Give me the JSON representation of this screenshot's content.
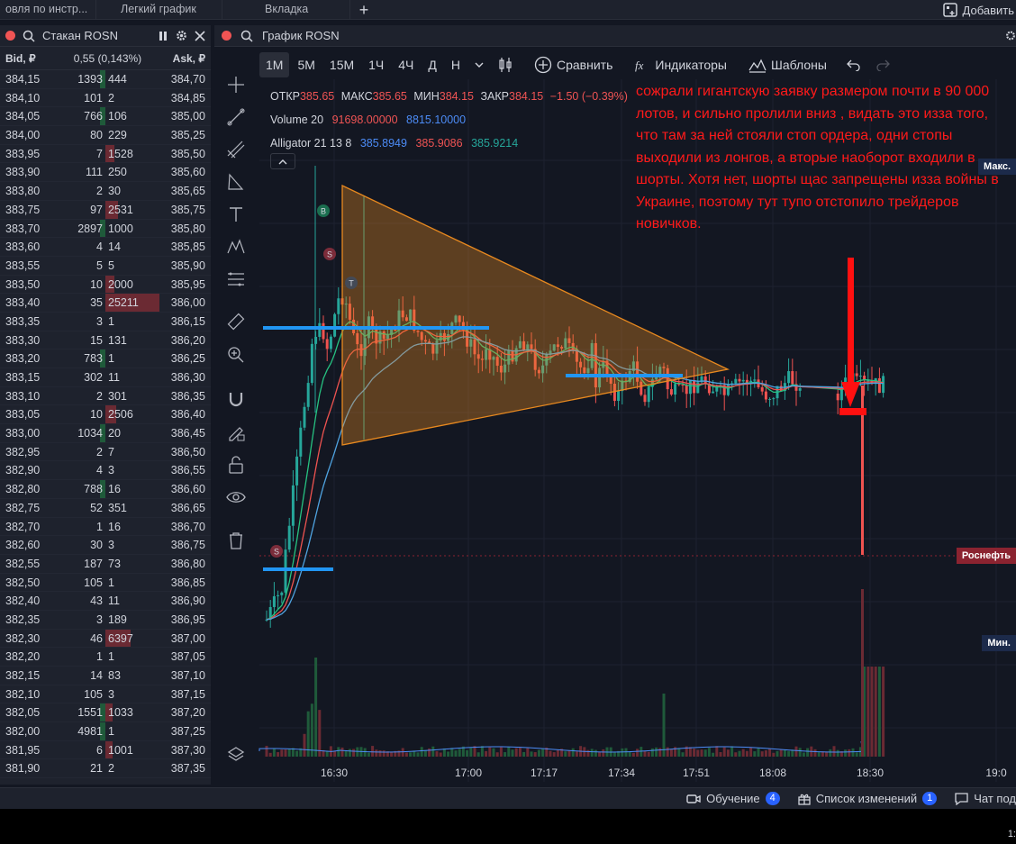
{
  "tabs": [
    "овля по инстр...",
    "Легкий график",
    "Вкладка"
  ],
  "add_widget_label": "Добавить",
  "orderbook": {
    "title": "Стакан ROSN",
    "col_bid": "Bid, ₽",
    "col_spread": "0,55 (0,143%)",
    "col_ask": "Ask, ₽",
    "rows": [
      [
        "384,15",
        "1393",
        "444",
        "384,70"
      ],
      [
        "384,10",
        "101",
        "2",
        "384,85"
      ],
      [
        "384,05",
        "766",
        "106",
        "385,00"
      ],
      [
        "384,00",
        "80",
        "229",
        "385,25"
      ],
      [
        "383,95",
        "7",
        "1528",
        "385,50"
      ],
      [
        "383,90",
        "111",
        "250",
        "385,60"
      ],
      [
        "383,80",
        "2",
        "30",
        "385,65"
      ],
      [
        "383,75",
        "97",
        "2531",
        "385,75"
      ],
      [
        "383,70",
        "2897",
        "1000",
        "385,80"
      ],
      [
        "383,60",
        "4",
        "14",
        "385,85"
      ],
      [
        "383,55",
        "5",
        "5",
        "385,90"
      ],
      [
        "383,50",
        "10",
        "2000",
        "385,95"
      ],
      [
        "383,40",
        "35",
        "25211",
        "386,00"
      ],
      [
        "383,35",
        "3",
        "1",
        "386,15"
      ],
      [
        "383,30",
        "15",
        "131",
        "386,20"
      ],
      [
        "383,20",
        "783",
        "1",
        "386,25"
      ],
      [
        "383,15",
        "302",
        "11",
        "386,30"
      ],
      [
        "383,10",
        "2",
        "301",
        "386,35"
      ],
      [
        "383,05",
        "10",
        "2506",
        "386,40"
      ],
      [
        "383,00",
        "1034",
        "20",
        "386,45"
      ],
      [
        "382,95",
        "2",
        "7",
        "386,50"
      ],
      [
        "382,90",
        "4",
        "3",
        "386,55"
      ],
      [
        "382,80",
        "788",
        "16",
        "386,60"
      ],
      [
        "382,75",
        "52",
        "351",
        "386,65"
      ],
      [
        "382,70",
        "1",
        "16",
        "386,70"
      ],
      [
        "382,60",
        "30",
        "3",
        "386,75"
      ],
      [
        "382,55",
        "187",
        "73",
        "386,80"
      ],
      [
        "382,50",
        "105",
        "1",
        "386,85"
      ],
      [
        "382,40",
        "43",
        "11",
        "386,90"
      ],
      [
        "382,35",
        "3",
        "189",
        "386,95"
      ],
      [
        "382,30",
        "46",
        "6397",
        "387,00"
      ],
      [
        "382,20",
        "1",
        "1",
        "387,05"
      ],
      [
        "382,15",
        "14",
        "83",
        "387,10"
      ],
      [
        "382,10",
        "105",
        "3",
        "387,15"
      ],
      [
        "382,05",
        "1551",
        "1033",
        "387,20"
      ],
      [
        "382,00",
        "4981",
        "1",
        "387,25"
      ],
      [
        "381,95",
        "6",
        "1001",
        "387,30"
      ],
      [
        "381,90",
        "21",
        "2",
        "387,35"
      ]
    ]
  },
  "chart": {
    "title": "График ROSN",
    "timeframes": [
      "1M",
      "5M",
      "15M",
      "1Ч",
      "4Ч",
      "Д",
      "Н"
    ],
    "active_timeframe": "1M",
    "compare_label": "Сравнить",
    "indicators_label": "Индикаторы",
    "templates_label": "Шаблоны",
    "ohlc": {
      "open_label": "ОТКР",
      "open": "385.65",
      "high_label": "МАКС",
      "high": "385.65",
      "low_label": "МИН",
      "low": "384.15",
      "close_label": "ЗАКР",
      "close": "384.15",
      "change": "−1.50 (−0.39%)"
    },
    "volume_label": "Volume 20",
    "volume_v1": "91698.00000",
    "volume_v2": "8815.10000",
    "alligator_label": "Alligator 21 13 8",
    "alligator_v1": "385.8949",
    "alligator_v2": "385.9086",
    "alligator_v3": "385.9214",
    "annotation": "сожрали гигантскую заявку размером почти в 90 000 лотов, и сильно пролили вниз , видать это изза того, что там за ней стояли стоп ордера, одни стопы выходили из лонгов, а вторые наоборот входили в шорты. Хотя нет, шорты щас запрещены изза войны в Украине, поэтому тут тупо отстопило трейдеров новичков.",
    "price_labels": {
      "max": "Макс.",
      "last": "Роснефть",
      "min": "Мин."
    },
    "time_labels": [
      "16:30",
      "17:00",
      "17:17",
      "17:34",
      "17:51",
      "18:08",
      "18:30",
      "19:0"
    ],
    "markers": [
      "B",
      "S",
      "T",
      "S"
    ],
    "colors": {
      "up": "#26a69a",
      "down": "#ef5350",
      "triangle": "#e8891f",
      "level": "#2196f3",
      "arrow": "#ff1010"
    }
  },
  "status": {
    "learning_label": "Обучение",
    "learning_count": "4",
    "changes_label": "Список изменений",
    "changes_count": "1",
    "chat_label": "Чат под"
  },
  "clock": "1:"
}
